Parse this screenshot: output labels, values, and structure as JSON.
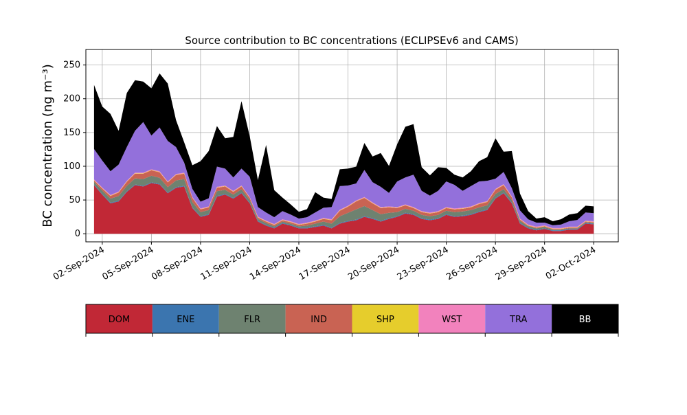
{
  "chart_data": {
    "type": "area",
    "stacked": true,
    "title": "Source contribution to BC concentrations (ECLIPSEv6 and CAMS)",
    "xlabel": "",
    "ylabel": "BC concentration (ng m⁻³)",
    "ylim": [
      -12,
      273
    ],
    "xlim": [
      "2024-09-01T00:00",
      "2024-10-03T12:00"
    ],
    "yticks": [
      0,
      50,
      100,
      150,
      200,
      250
    ],
    "xtick_labels": [
      "02-Sep-2024",
      "05-Sep-2024",
      "08-Sep-2024",
      "11-Sep-2024",
      "14-Sep-2024",
      "17-Sep-2024",
      "20-Sep-2024",
      "23-Sep-2024",
      "26-Sep-2024",
      "29-Sep-2024",
      "02-Oct-2024"
    ],
    "grid": true,
    "legend_position": "below",
    "legend_style": "colorbar",
    "times": [
      "2024-09-01T12:00",
      "2024-09-02T00:00",
      "2024-09-02T12:00",
      "2024-09-03T00:00",
      "2024-09-03T12:00",
      "2024-09-04T00:00",
      "2024-09-04T12:00",
      "2024-09-05T00:00",
      "2024-09-05T12:00",
      "2024-09-06T00:00",
      "2024-09-06T12:00",
      "2024-09-07T00:00",
      "2024-09-07T12:00",
      "2024-09-08T00:00",
      "2024-09-08T12:00",
      "2024-09-09T00:00",
      "2024-09-09T12:00",
      "2024-09-10T00:00",
      "2024-09-10T12:00",
      "2024-09-11T00:00",
      "2024-09-11T12:00",
      "2024-09-12T00:00",
      "2024-09-12T12:00",
      "2024-09-13T00:00",
      "2024-09-13T12:00",
      "2024-09-14T00:00",
      "2024-09-14T12:00",
      "2024-09-15T00:00",
      "2024-09-15T12:00",
      "2024-09-16T00:00",
      "2024-09-16T12:00",
      "2024-09-17T00:00",
      "2024-09-17T12:00",
      "2024-09-18T00:00",
      "2024-09-18T12:00",
      "2024-09-19T00:00",
      "2024-09-19T12:00",
      "2024-09-20T00:00",
      "2024-09-20T12:00",
      "2024-09-21T00:00",
      "2024-09-21T12:00",
      "2024-09-22T00:00",
      "2024-09-22T12:00",
      "2024-09-23T00:00",
      "2024-09-23T12:00",
      "2024-09-24T00:00",
      "2024-09-24T12:00",
      "2024-09-25T00:00",
      "2024-09-25T12:00",
      "2024-09-26T00:00",
      "2024-09-26T12:00",
      "2024-09-27T00:00",
      "2024-09-27T12:00",
      "2024-09-28T00:00",
      "2024-09-28T12:00",
      "2024-09-29T00:00",
      "2024-09-29T12:00",
      "2024-09-30T00:00",
      "2024-09-30T12:00",
      "2024-10-01T00:00",
      "2024-10-01T12:00",
      "2024-10-02T00:00"
    ],
    "series": [
      {
        "name": "DOM",
        "color": "#c12836",
        "values": [
          72,
          58,
          45,
          48,
          62,
          72,
          70,
          75,
          73,
          60,
          68,
          70,
          38,
          25,
          28,
          55,
          58,
          52,
          60,
          45,
          18,
          12,
          8,
          15,
          12,
          8,
          8,
          10,
          12,
          8,
          15,
          18,
          20,
          25,
          22,
          18,
          22,
          25,
          30,
          28,
          22,
          20,
          22,
          28,
          25,
          26,
          28,
          32,
          35,
          52,
          60,
          45,
          15,
          8,
          5,
          7,
          4,
          4,
          6,
          6,
          15,
          14
        ]
      },
      {
        "name": "ENE",
        "color": "#3b75af",
        "values": [
          1,
          1,
          1,
          1,
          1,
          1,
          1,
          1,
          1,
          1,
          1,
          1,
          1,
          1,
          1,
          1,
          1,
          1,
          1,
          1,
          1,
          1,
          1,
          1,
          1,
          1,
          1,
          1,
          1,
          1,
          1,
          1,
          1,
          1,
          1,
          1,
          1,
          1,
          1,
          1,
          1,
          1,
          1,
          1,
          1,
          1,
          1,
          1,
          1,
          1,
          1,
          1,
          1,
          1,
          1,
          1,
          1,
          1,
          1,
          1,
          1,
          1
        ]
      },
      {
        "name": "FLR",
        "color": "#6e8270",
        "values": [
          4,
          5,
          6,
          7,
          8,
          9,
          10,
          10,
          9,
          8,
          10,
          10,
          8,
          6,
          6,
          7,
          6,
          5,
          5,
          4,
          3,
          3,
          2,
          2,
          2,
          2,
          3,
          4,
          5,
          6,
          10,
          12,
          15,
          15,
          12,
          10,
          8,
          6,
          6,
          5,
          5,
          5,
          5,
          5,
          6,
          6,
          6,
          6,
          6,
          6,
          5,
          4,
          3,
          2,
          2,
          2,
          1,
          1,
          1,
          1,
          1,
          1
        ]
      },
      {
        "name": "IND",
        "color": "#c96353",
        "values": [
          2,
          3,
          4,
          5,
          6,
          7,
          8,
          8,
          8,
          7,
          8,
          8,
          6,
          4,
          4,
          5,
          5,
          4,
          4,
          3,
          2,
          2,
          2,
          2,
          2,
          2,
          3,
          3,
          4,
          5,
          8,
          9,
          12,
          12,
          10,
          9,
          8,
          6,
          5,
          4,
          4,
          4,
          4,
          4,
          4,
          4,
          4,
          5,
          5,
          6,
          6,
          4,
          2,
          1,
          1,
          1,
          1,
          1,
          1,
          1,
          1,
          1
        ]
      },
      {
        "name": "SHP",
        "color": "#e6cd2c",
        "values": [
          0.5,
          0.5,
          0.5,
          0.5,
          0.5,
          0.5,
          0.5,
          0.5,
          0.5,
          0.5,
          0.5,
          0.5,
          0.5,
          0.5,
          0.5,
          0.5,
          0.5,
          0.5,
          0.5,
          0.5,
          0.5,
          0.5,
          0.5,
          0.5,
          0.5,
          0.5,
          0.5,
          0.5,
          0.5,
          0.5,
          0.5,
          0.5,
          0.5,
          0.5,
          0.5,
          0.5,
          0.5,
          0.5,
          0.5,
          0.5,
          0.5,
          0.5,
          0.5,
          0.5,
          0.5,
          0.5,
          0.5,
          0.5,
          0.5,
          0.5,
          0.5,
          0.5,
          0.5,
          0.5,
          0.5,
          0.5,
          0.5,
          0.5,
          0.5,
          0.5,
          0.5,
          0.5
        ]
      },
      {
        "name": "WST",
        "color": "#f282bd",
        "values": [
          1,
          1,
          1,
          1,
          1,
          1,
          1,
          1,
          1,
          1,
          1,
          1,
          1,
          1,
          1,
          1,
          1,
          1,
          1,
          1,
          1,
          1,
          1,
          1,
          1,
          1,
          1,
          1,
          1,
          1,
          1,
          1,
          1,
          1,
          1,
          1,
          1,
          1,
          1,
          1,
          1,
          1,
          1,
          1,
          1,
          1,
          1,
          1,
          1,
          1,
          1,
          1,
          1,
          1,
          1,
          1,
          1,
          1,
          1,
          1,
          1,
          1
        ]
      },
      {
        "name": "TRA",
        "color": "#9370db",
        "values": [
          45,
          40,
          35,
          40,
          50,
          62,
          75,
          50,
          65,
          60,
          40,
          15,
          12,
          10,
          12,
          30,
          25,
          20,
          25,
          30,
          14,
          12,
          10,
          12,
          10,
          8,
          8,
          12,
          15,
          18,
          35,
          30,
          25,
          40,
          30,
          30,
          20,
          38,
          40,
          48,
          30,
          25,
          30,
          38,
          35,
          25,
          30,
          32,
          30,
          15,
          18,
          12,
          12,
          8,
          6,
          4,
          4,
          5,
          8,
          10,
          12,
          12
        ]
      },
      {
        "name": "BB",
        "color": "#000000",
        "values": [
          95,
          80,
          85,
          50,
          80,
          75,
          60,
          70,
          80,
          85,
          40,
          30,
          35,
          60,
          70,
          60,
          45,
          60,
          100,
          60,
          40,
          100,
          40,
          20,
          15,
          10,
          12,
          30,
          15,
          12,
          25,
          25,
          25,
          40,
          38,
          50,
          40,
          55,
          75,
          75,
          35,
          30,
          35,
          20,
          15,
          20,
          22,
          30,
          35,
          60,
          30,
          55,
          25,
          12,
          6,
          8,
          6,
          8,
          10,
          10,
          10,
          10
        ]
      }
    ]
  }
}
